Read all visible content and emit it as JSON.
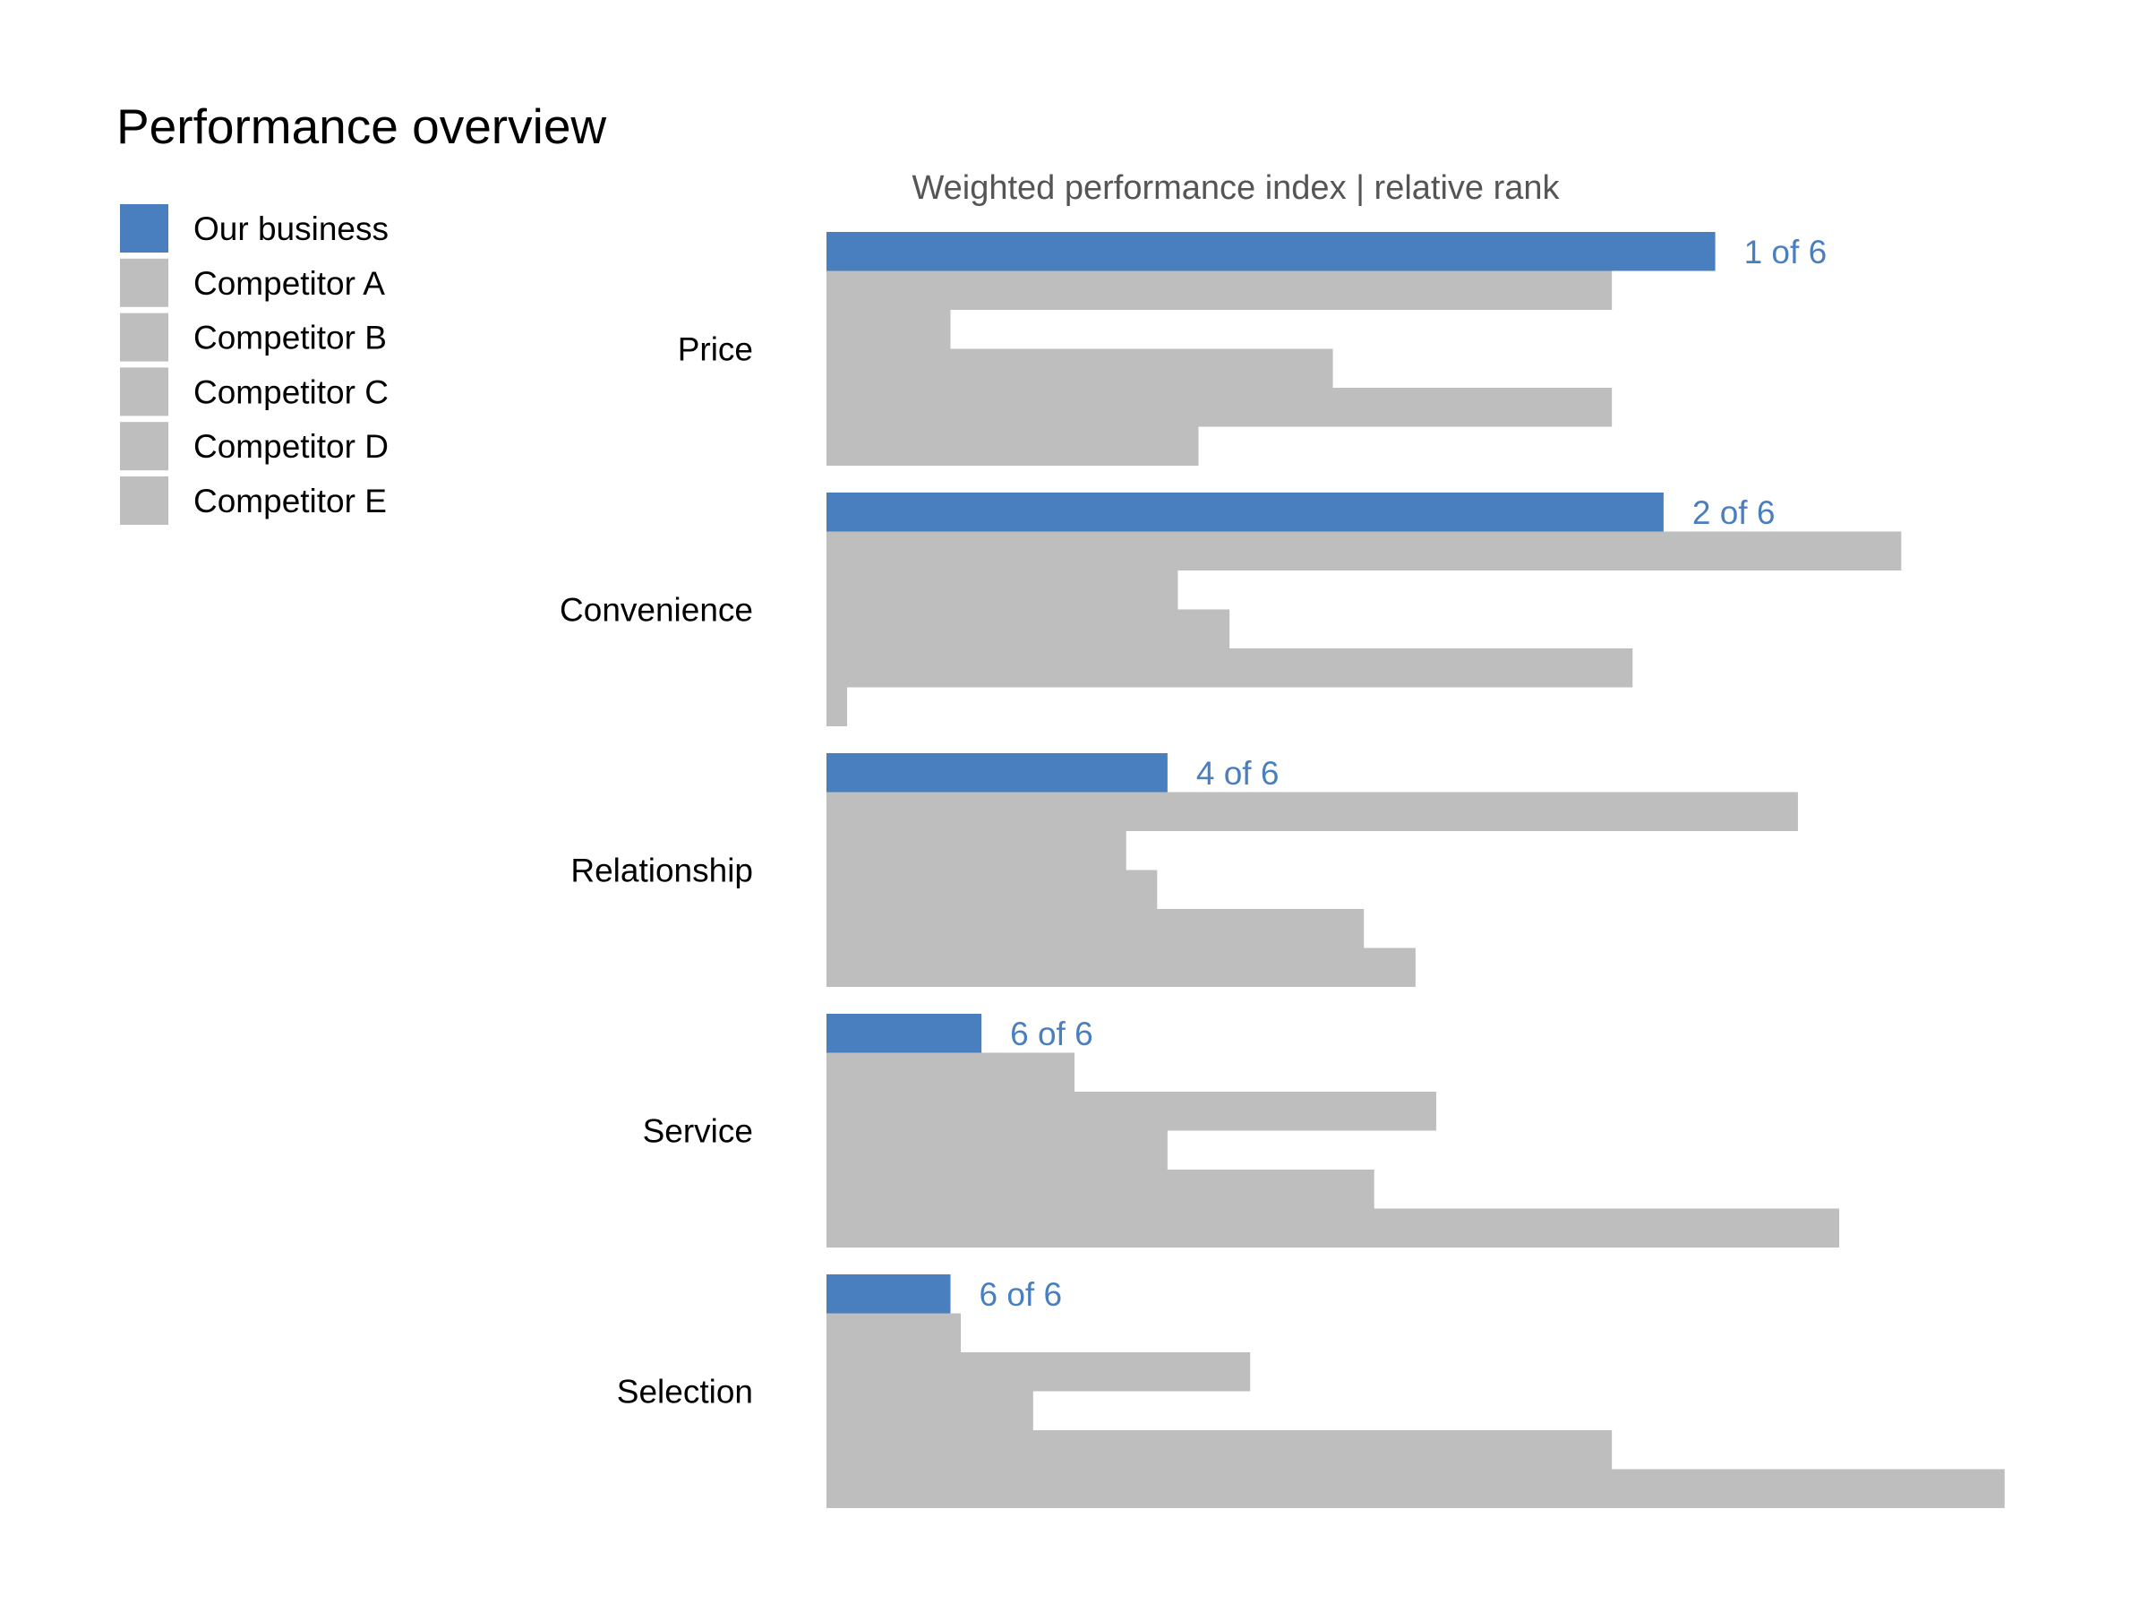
{
  "chart_data": {
    "type": "bar",
    "orientation": "horizontal",
    "title": "Performance overview",
    "subtitle": "Weighted performance index | relative rank",
    "categories": [
      "Price",
      "Convenience",
      "Relationship",
      "Service",
      "Selection"
    ],
    "series": [
      {
        "name": "Our business",
        "color": "#4a7fbf",
        "values": [
          86,
          81,
          33,
          15,
          12
        ]
      },
      {
        "name": "Competitor A",
        "color": "#bebebe",
        "values": [
          76,
          104,
          94,
          24,
          13
        ]
      },
      {
        "name": "Competitor B",
        "color": "#bebebe",
        "values": [
          12,
          34,
          29,
          59,
          41
        ]
      },
      {
        "name": "Competitor C",
        "color": "#bebebe",
        "values": [
          49,
          39,
          32,
          33,
          20
        ]
      },
      {
        "name": "Competitor D",
        "color": "#bebebe",
        "values": [
          76,
          78,
          52,
          53,
          76
        ]
      },
      {
        "name": "Competitor E",
        "color": "#bebebe",
        "values": [
          36,
          2,
          57,
          98,
          114
        ]
      }
    ],
    "rank_labels": [
      "1 of 6",
      "2 of 6",
      "4 of 6",
      "6 of 6",
      "6 of 6"
    ],
    "xlim": [
      0,
      120
    ],
    "axis_visible": false,
    "grid": false,
    "legend_position": "top-left"
  },
  "colors": {
    "highlight": "#4a7fbf",
    "competitor": "#bebebe",
    "rank_text": "#4a7fbf"
  }
}
